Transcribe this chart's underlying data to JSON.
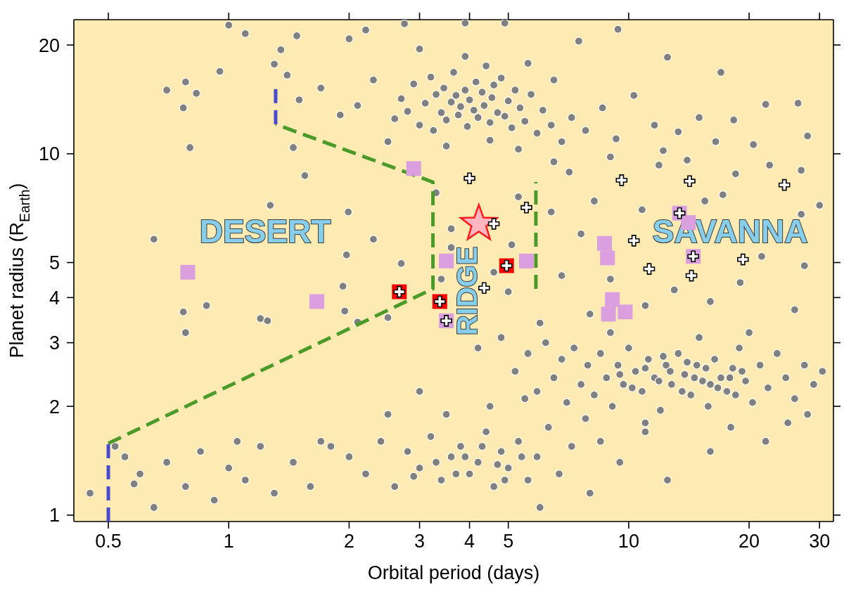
{
  "chart_data": {
    "type": "scatter",
    "xlabel": "Orbital period (days)",
    "ylabel": "Planet radius (R$_{Earth}$)",
    "log": "xy",
    "xlim": [
      0.41,
      32.5
    ],
    "xticks": [
      0.5,
      1,
      2,
      3,
      4,
      5,
      10,
      20,
      30
    ],
    "ylim": [
      0.96,
      23.5
    ],
    "yticks": [
      1,
      2,
      3,
      4,
      5,
      10,
      20
    ],
    "annotations": [
      "DESERT",
      "RIDGE",
      "SAVANNA"
    ],
    "series": [
      {
        "type": "scatter",
        "color": "#808080",
        "marker": "circle",
        "x": [
          2.6,
          2.7,
          2.8,
          2.9,
          3.0,
          3.1,
          3.2,
          3.25,
          3.3,
          3.4,
          3.45,
          3.5,
          3.6,
          3.65,
          3.7,
          3.75,
          3.8,
          3.9,
          3.95,
          4.0,
          4.1,
          4.15,
          4.2,
          4.3,
          4.35,
          4.4,
          4.5,
          4.55,
          4.6,
          4.7,
          4.8,
          4.9,
          5.0,
          5.1,
          5.2,
          5.35,
          5.5,
          5.7,
          5.9,
          6.1,
          6.4,
          6.8,
          7.2,
          2.3,
          2.1,
          1.9,
          1.7,
          1.5,
          1.4,
          2.5,
          3.5,
          4.5,
          5.3,
          3.9,
          3.0,
          5.6,
          6.5,
          7.8,
          8.6,
          9.3,
          10.3,
          11.6,
          13.3,
          15.0,
          16.5,
          18.3,
          22.0,
          26.5,
          28.0,
          12.2,
          20.5,
          1.0,
          1.1,
          1.48,
          2.2,
          2.75,
          3.9,
          4.9,
          9.4,
          2.0,
          0.78,
          0.7,
          0.83,
          0.77,
          0.95,
          1.3,
          1.35,
          7.5,
          12.5,
          17.0,
          0.8,
          1.45,
          1.55,
          1.27,
          0.65,
          1.99,
          2.3,
          1.97,
          2.7,
          0.88,
          0.77,
          0.78,
          1.2,
          1.25,
          1.93,
          1.95,
          2.1,
          2.5,
          3.3,
          3.6,
          3.6,
          4.6,
          5.1,
          5.3,
          3.4,
          5.0,
          6.4,
          6.8,
          7.1,
          7.6,
          8.2,
          9.0,
          10.8,
          11.9,
          13.0,
          15.5,
          17.2,
          19.0,
          21.5,
          27.0,
          27.5,
          22.5,
          16.0,
          11.0,
          8.0,
          6.0,
          26.0,
          6.5,
          9.0,
          14.0,
          18.5,
          27.0,
          30.0,
          4.2,
          4.8,
          5.2,
          5.6,
          5.9,
          6.2,
          6.5,
          6.8,
          7.0,
          7.3,
          7.6,
          7.9,
          8.2,
          8.5,
          8.8,
          9.1,
          9.4,
          9.7,
          10.0,
          10.4,
          10.8,
          11.2,
          11.6,
          12.0,
          12.4,
          12.8,
          13.3,
          13.8,
          14.3,
          14.8,
          15.3,
          15.8,
          16.4,
          17.0,
          17.6,
          18.2,
          18.9,
          19.6,
          20.4,
          21.3,
          22.3,
          23.5,
          24.7,
          26.0,
          27.5,
          29.0,
          20.0,
          15.0,
          9.0,
          25.0,
          18.0,
          11.0,
          30.5,
          9.5,
          10.2,
          11.0,
          11.9,
          12.7,
          13.6,
          14.6,
          15.6,
          16.7,
          17.9,
          19.2,
          12.2,
          14.0,
          16.0,
          18.5,
          2.0,
          2.2,
          2.4,
          2.6,
          2.8,
          3.0,
          3.2,
          3.4,
          3.6,
          3.8,
          4.0,
          4.2,
          4.4,
          4.6,
          4.8,
          5.0,
          5.3,
          5.6,
          5.9,
          6.3,
          6.7,
          7.2,
          7.8,
          8.5,
          9.5,
          11.0,
          3.5,
          4.5,
          3.0,
          5.5,
          2.5,
          1.8,
          8.0,
          12.5,
          16.0,
          22.0,
          28.0,
          6.0,
          3.3,
          3.9,
          4.3,
          4.9,
          5.4,
          3.7,
          4.7,
          2.9,
          0.45,
          0.55,
          0.6,
          0.65,
          0.7,
          0.78,
          0.85,
          0.92,
          1.0,
          1.1,
          1.2,
          1.3,
          1.45,
          1.6,
          1.7,
          0.52,
          0.58,
          1.05
        ],
        "values": [
          12.5,
          14.2,
          13.1,
          15.6,
          12.0,
          13.8,
          16.3,
          11.6,
          14.6,
          13.0,
          15.2,
          12.4,
          13.9,
          16.8,
          14.5,
          12.8,
          13.5,
          15.0,
          11.9,
          14.1,
          13.2,
          15.8,
          12.6,
          14.8,
          13.6,
          17.5,
          12.2,
          14.3,
          15.5,
          13.0,
          16.2,
          12.7,
          14.0,
          11.8,
          15.0,
          13.4,
          12.3,
          14.6,
          11.4,
          13.2,
          12.0,
          10.8,
          12.6,
          16.0,
          13.6,
          12.8,
          15.2,
          14.1,
          16.5,
          10.8,
          10.5,
          10.9,
          10.3,
          18.6,
          19.5,
          17.8,
          16.0,
          11.6,
          13.4,
          11.0,
          14.5,
          12.0,
          11.5,
          12.6,
          10.8,
          12.4,
          13.7,
          13.8,
          11.2,
          10.2,
          10.6,
          22.7,
          21.5,
          21.2,
          22.0,
          22.9,
          23.0,
          23.0,
          22.1,
          20.8,
          15.8,
          15.0,
          14.7,
          13.4,
          16.9,
          17.7,
          19.4,
          20.5,
          18.5,
          16.8,
          10.4,
          10.4,
          8.7,
          7.2,
          5.8,
          6.9,
          5.8,
          5.25,
          4.97,
          3.8,
          3.65,
          3.2,
          3.5,
          3.45,
          4.3,
          3.67,
          3.42,
          3.52,
          7.8,
          6.2,
          5.5,
          4.7,
          5.6,
          7.6,
          4.5,
          4.15,
          6.9,
          4.6,
          8.9,
          6.0,
          7.4,
          4.5,
          7.0,
          9.3,
          4.2,
          7.4,
          7.7,
          4.4,
          5.2,
          6.8,
          4.9,
          9.3,
          3.9,
          3.8,
          3.6,
          3.4,
          3.7,
          9.5,
          9.8,
          9.6,
          8.8,
          9.0,
          7.2,
          2.9,
          3.1,
          2.5,
          2.8,
          2.2,
          3.0,
          2.4,
          2.7,
          2.05,
          2.9,
          2.3,
          2.6,
          2.15,
          2.8,
          2.4,
          2.0,
          2.6,
          2.3,
          2.9,
          2.5,
          2.2,
          2.7,
          2.4,
          1.95,
          2.6,
          2.3,
          2.8,
          2.45,
          2.15,
          2.6,
          2.35,
          2.0,
          2.7,
          2.4,
          2.2,
          2.55,
          2.9,
          2.35,
          2.05,
          2.6,
          2.25,
          2.8,
          2.4,
          2.1,
          2.6,
          2.3,
          3.2,
          3.1,
          3.2,
          1.8,
          1.75,
          1.8,
          2.5,
          2.45,
          2.25,
          2.55,
          2.35,
          2.5,
          2.2,
          2.4,
          2.55,
          2.25,
          2.4,
          2.5,
          2.75,
          2.65,
          2.3,
          2.15,
          1.45,
          1.3,
          1.6,
          1.2,
          1.5,
          1.35,
          1.65,
          1.25,
          1.45,
          1.55,
          1.3,
          1.4,
          1.7,
          1.2,
          1.5,
          1.35,
          1.6,
          1.25,
          1.45,
          1.75,
          1.3,
          1.55,
          1.85,
          1.6,
          1.4,
          1.7,
          1.9,
          2.0,
          2.2,
          2.1,
          1.9,
          1.55,
          1.15,
          1.25,
          1.5,
          1.6,
          1.9,
          1.05,
          1.4,
          1.45,
          1.55,
          1.25,
          1.45,
          1.3,
          1.38,
          1.28,
          1.15,
          1.45,
          1.3,
          1.05,
          1.4,
          1.2,
          1.5,
          1.1,
          1.35,
          1.25,
          1.55,
          1.15,
          1.4,
          1.2,
          1.6,
          1.55,
          1.22,
          1.6
        ]
      },
      {
        "type": "line",
        "color": "#4c9a2a",
        "line_style": "dashed",
        "marker": "none",
        "x": [
          0.5,
          3.24,
          3.24,
          1.31
        ],
        "values": [
          1.58,
          4.23,
          8.35,
          12.07
        ]
      },
      {
        "type": "line",
        "color": "#4c9a2a",
        "line_style": "dashed",
        "marker": "none",
        "x": [
          5.86,
          5.86
        ],
        "values": [
          4.23,
          8.35
        ]
      },
      {
        "type": "line",
        "color": "#4a4acf",
        "line_style": "dashed",
        "marker": "none",
        "x": [
          0.5,
          0.5
        ],
        "values": [
          0.96,
          1.58
        ]
      },
      {
        "type": "line",
        "color": "#4a4acf",
        "line_style": "dashed",
        "marker": "none",
        "x": [
          1.31,
          1.31
        ],
        "values": [
          12.07,
          15.2
        ]
      },
      {
        "type": "scatter",
        "color": "#db9fe0",
        "marker": "square",
        "x": [
          0.79,
          1.66,
          2.9,
          3.5,
          3.5,
          5.55,
          8.7,
          8.85,
          9.1,
          8.9,
          9.8,
          13.4,
          14.1,
          14.5
        ],
        "values": [
          4.7,
          3.9,
          9.1,
          5.05,
          3.45,
          5.05,
          5.65,
          5.15,
          3.95,
          3.6,
          3.65,
          6.85,
          6.45,
          5.2
        ]
      },
      {
        "type": "scatter",
        "color": "#ff0000",
        "marker": "square",
        "x": [
          2.67,
          3.37,
          4.95
        ],
        "values": [
          4.15,
          3.9,
          4.9
        ]
      },
      {
        "type": "scatter",
        "color": "#ffb6c1",
        "marker": "star",
        "x": [
          4.22
        ],
        "values": [
          6.4
        ]
      },
      {
        "type": "scatter",
        "color": "#ffffff",
        "marker": "cross",
        "x": [
          2.67,
          3.37,
          4.95,
          3.5,
          13.4,
          14.5,
          4.0,
          4.6,
          5.55,
          4.35,
          9.6,
          14.2,
          10.3,
          11.25,
          14.35,
          19.3,
          24.5
        ],
        "values": [
          4.15,
          3.9,
          4.9,
          3.45,
          6.85,
          5.2,
          8.55,
          6.4,
          7.1,
          4.25,
          8.45,
          8.4,
          5.75,
          4.8,
          4.6,
          5.1,
          8.2
        ]
      }
    ]
  }
}
